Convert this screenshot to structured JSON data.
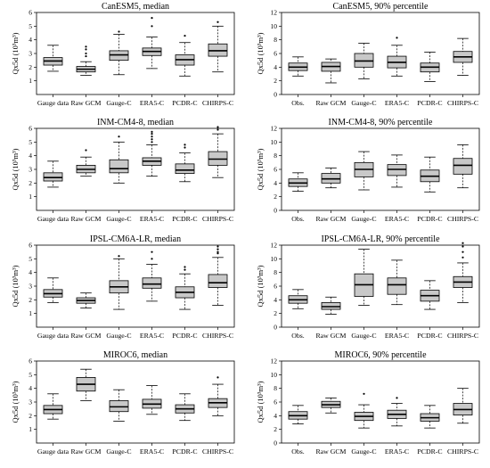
{
  "chart_data": [
    {
      "type": "box",
      "title": "CanESM5, median",
      "ylabel": "Qx5d (10³m³)",
      "ylim": [
        0,
        6
      ],
      "yticks": [
        1,
        2,
        3,
        4,
        5,
        6
      ],
      "categories": [
        "Gauge data",
        "Raw GCM",
        "Gauge-C",
        "ERA5-C",
        "PCDR-C",
        "CHIRPS-C"
      ],
      "boxes": [
        {
          "min": 1.7,
          "q1": 2.15,
          "median": 2.45,
          "q3": 2.7,
          "max": 3.6,
          "outliers": []
        },
        {
          "min": 1.4,
          "q1": 1.65,
          "median": 1.85,
          "q3": 2.05,
          "max": 2.4,
          "outliers": [
            2.8,
            3.0,
            3.3,
            3.5
          ]
        },
        {
          "min": 1.45,
          "q1": 2.5,
          "median": 2.9,
          "q3": 3.2,
          "max": 4.4,
          "outliers": [
            4.6
          ]
        },
        {
          "min": 1.9,
          "q1": 2.85,
          "median": 3.15,
          "q3": 3.4,
          "max": 4.2,
          "outliers": [
            5.0,
            5.6
          ]
        },
        {
          "min": 1.35,
          "q1": 2.15,
          "median": 2.55,
          "q3": 2.9,
          "max": 3.8,
          "outliers": [
            4.3
          ]
        },
        {
          "min": 1.65,
          "q1": 2.8,
          "median": 3.2,
          "q3": 3.7,
          "max": 5.0,
          "outliers": [
            5.3
          ]
        }
      ]
    },
    {
      "type": "box",
      "title": "CanESM5, 90% percentile",
      "ylabel": "Qx5d (10³m³)",
      "ylim": [
        0,
        12
      ],
      "yticks": [
        0,
        2,
        4,
        6,
        8,
        10,
        12
      ],
      "categories": [
        "Obs.",
        "Raw GCM",
        "Gauge-C",
        "ERA5-C",
        "PCDR-C",
        "CHIRPS-C"
      ],
      "boxes": [
        {
          "min": 2.7,
          "q1": 3.5,
          "median": 4.0,
          "q3": 4.6,
          "max": 5.5,
          "outliers": []
        },
        {
          "min": 1.7,
          "q1": 3.4,
          "median": 4.1,
          "q3": 4.7,
          "max": 5.2,
          "outliers": []
        },
        {
          "min": 2.3,
          "q1": 4.0,
          "median": 4.9,
          "q3": 6.0,
          "max": 7.5,
          "outliers": []
        },
        {
          "min": 2.7,
          "q1": 3.9,
          "median": 4.7,
          "q3": 5.6,
          "max": 7.2,
          "outliers": [
            8.3
          ]
        },
        {
          "min": 1.9,
          "q1": 3.3,
          "median": 4.0,
          "q3": 4.6,
          "max": 6.2,
          "outliers": []
        },
        {
          "min": 2.8,
          "q1": 4.7,
          "median": 5.5,
          "q3": 6.3,
          "max": 8.2,
          "outliers": []
        }
      ]
    },
    {
      "type": "box",
      "title": "INM-CM4-8, median",
      "ylabel": "Qx5d (10³m³)",
      "ylim": [
        0,
        6
      ],
      "yticks": [
        1,
        2,
        3,
        4,
        5,
        6
      ],
      "categories": [
        "Gauge data",
        "Raw GCM",
        "Gauge-C",
        "ERA5-C",
        "PCDR-C",
        "CHIRPS-C"
      ],
      "boxes": [
        {
          "min": 1.7,
          "q1": 2.15,
          "median": 2.4,
          "q3": 2.75,
          "max": 3.6,
          "outliers": []
        },
        {
          "min": 2.5,
          "q1": 2.75,
          "median": 3.0,
          "q3": 3.3,
          "max": 3.9,
          "outliers": [
            4.4
          ]
        },
        {
          "min": 2.0,
          "q1": 2.75,
          "median": 3.05,
          "q3": 3.7,
          "max": 5.0,
          "outliers": [
            5.4
          ]
        },
        {
          "min": 2.5,
          "q1": 3.3,
          "median": 3.6,
          "q3": 3.85,
          "max": 4.8,
          "outliers": [
            5.0,
            5.2,
            5.4,
            5.6,
            5.75
          ]
        },
        {
          "min": 2.1,
          "q1": 2.7,
          "median": 2.95,
          "q3": 3.4,
          "max": 4.2,
          "outliers": [
            4.6,
            4.8
          ]
        },
        {
          "min": 2.4,
          "q1": 3.3,
          "median": 3.75,
          "q3": 4.3,
          "max": 5.6,
          "outliers": [
            5.9,
            6.1
          ]
        }
      ]
    },
    {
      "type": "box",
      "title": "INM-CM4-8, 90% percentile",
      "ylabel": "Qx5d (10³m³)",
      "ylim": [
        0,
        12
      ],
      "yticks": [
        0,
        2,
        4,
        6,
        8,
        10,
        12
      ],
      "categories": [
        "Obs.",
        "Raw GCM",
        "Gauge-C",
        "ERA5-C",
        "PCDR-C",
        "CHIRPS-C"
      ],
      "boxes": [
        {
          "min": 2.8,
          "q1": 3.5,
          "median": 4.0,
          "q3": 4.6,
          "max": 5.5,
          "outliers": []
        },
        {
          "min": 3.3,
          "q1": 4.0,
          "median": 4.6,
          "q3": 5.4,
          "max": 6.2,
          "outliers": []
        },
        {
          "min": 3.0,
          "q1": 4.9,
          "median": 6.0,
          "q3": 7.0,
          "max": 8.6,
          "outliers": []
        },
        {
          "min": 3.4,
          "q1": 5.1,
          "median": 6.0,
          "q3": 6.7,
          "max": 8.1,
          "outliers": []
        },
        {
          "min": 2.7,
          "q1": 4.2,
          "median": 5.0,
          "q3": 5.9,
          "max": 7.8,
          "outliers": []
        },
        {
          "min": 3.3,
          "q1": 5.3,
          "median": 6.6,
          "q3": 7.6,
          "max": 9.6,
          "outliers": []
        }
      ]
    },
    {
      "type": "box",
      "title": "IPSL-CM6A-LR, median",
      "ylabel": "Qx5d (10³m³)",
      "ylim": [
        0,
        6
      ],
      "yticks": [
        1,
        2,
        3,
        4,
        5,
        6
      ],
      "categories": [
        "Gauge data",
        "Raw GCM",
        "Gauge-C",
        "ERA5-C",
        "PCDR-C",
        "CHIRPS-C"
      ],
      "boxes": [
        {
          "min": 1.8,
          "q1": 2.2,
          "median": 2.45,
          "q3": 2.75,
          "max": 3.6,
          "outliers": []
        },
        {
          "min": 1.4,
          "q1": 1.75,
          "median": 1.95,
          "q3": 2.15,
          "max": 2.5,
          "outliers": []
        },
        {
          "min": 1.3,
          "q1": 2.5,
          "median": 2.95,
          "q3": 3.4,
          "max": 5.0,
          "outliers": [
            5.2
          ]
        },
        {
          "min": 1.9,
          "q1": 2.85,
          "median": 3.15,
          "q3": 3.6,
          "max": 4.6,
          "outliers": [
            5.0,
            5.5
          ]
        },
        {
          "min": 1.3,
          "q1": 2.15,
          "median": 2.55,
          "q3": 2.95,
          "max": 3.9,
          "outliers": [
            4.2,
            4.4
          ]
        },
        {
          "min": 1.6,
          "q1": 2.9,
          "median": 3.25,
          "q3": 3.85,
          "max": 5.1,
          "outliers": [
            5.4,
            5.5,
            5.7,
            5.9
          ]
        }
      ]
    },
    {
      "type": "box",
      "title": "IPSL-CM6A-LR, 90% percentile",
      "ylabel": "Qx5d (10³m³)",
      "ylim": [
        0,
        12
      ],
      "yticks": [
        0,
        2,
        4,
        6,
        8,
        10,
        12
      ],
      "categories": [
        "Obs.",
        "Raw GCM",
        "Gauge-C",
        "ERA5-C",
        "PCDR-C",
        "CHIRPS-C"
      ],
      "boxes": [
        {
          "min": 2.7,
          "q1": 3.5,
          "median": 4.0,
          "q3": 4.6,
          "max": 5.5,
          "outliers": []
        },
        {
          "min": 1.9,
          "q1": 2.6,
          "median": 3.0,
          "q3": 3.6,
          "max": 4.4,
          "outliers": []
        },
        {
          "min": 3.2,
          "q1": 4.5,
          "median": 6.2,
          "q3": 7.8,
          "max": 11.4,
          "outliers": []
        },
        {
          "min": 3.3,
          "q1": 4.8,
          "median": 6.2,
          "q3": 7.2,
          "max": 9.8,
          "outliers": []
        },
        {
          "min": 2.6,
          "q1": 3.8,
          "median": 4.6,
          "q3": 5.4,
          "max": 6.8,
          "outliers": []
        },
        {
          "min": 3.6,
          "q1": 5.8,
          "median": 6.6,
          "q3": 7.4,
          "max": 9.4,
          "outliers": [
            10.2,
            11.0,
            11.8,
            12.3
          ]
        }
      ]
    },
    {
      "type": "box",
      "title": "MIROC6, median",
      "ylabel": "Qx5d (10³m³)",
      "ylim": [
        0,
        6
      ],
      "yticks": [
        1,
        2,
        3,
        4,
        5,
        6
      ],
      "categories": [
        "Gauge data",
        "Raw GCM",
        "Gauge-C",
        "ERA5-C",
        "PCDR-C",
        "CHIRPS-C"
      ],
      "boxes": [
        {
          "min": 1.75,
          "q1": 2.15,
          "median": 2.45,
          "q3": 2.75,
          "max": 3.6,
          "outliers": []
        },
        {
          "min": 3.1,
          "q1": 3.8,
          "median": 4.3,
          "q3": 4.8,
          "max": 5.4,
          "outliers": []
        },
        {
          "min": 1.6,
          "q1": 2.3,
          "median": 2.65,
          "q3": 3.1,
          "max": 3.9,
          "outliers": []
        },
        {
          "min": 2.1,
          "q1": 2.55,
          "median": 2.85,
          "q3": 3.2,
          "max": 4.2,
          "outliers": []
        },
        {
          "min": 1.65,
          "q1": 2.2,
          "median": 2.5,
          "q3": 2.8,
          "max": 3.6,
          "outliers": []
        },
        {
          "min": 2.0,
          "q1": 2.6,
          "median": 2.95,
          "q3": 3.25,
          "max": 4.3,
          "outliers": [
            4.8
          ]
        }
      ]
    },
    {
      "type": "box",
      "title": "MIROC6, 90% percentile",
      "ylabel": "Qx5d (10³m³)",
      "ylim": [
        0,
        12
      ],
      "yticks": [
        0,
        2,
        4,
        6,
        8,
        10,
        12
      ],
      "categories": [
        "Obs.",
        "Raw GCM",
        "Gauge-C",
        "ERA5-C",
        "PCDR-C",
        "CHIRPS-C"
      ],
      "boxes": [
        {
          "min": 2.8,
          "q1": 3.5,
          "median": 4.0,
          "q3": 4.6,
          "max": 5.5,
          "outliers": []
        },
        {
          "min": 4.4,
          "q1": 5.2,
          "median": 5.6,
          "q3": 6.1,
          "max": 6.6,
          "outliers": []
        },
        {
          "min": 2.2,
          "q1": 3.3,
          "median": 3.9,
          "q3": 4.5,
          "max": 5.6,
          "outliers": [
            7.2
          ]
        },
        {
          "min": 2.5,
          "q1": 3.6,
          "median": 4.2,
          "q3": 4.8,
          "max": 5.8,
          "outliers": [
            6.6
          ]
        },
        {
          "min": 2.2,
          "q1": 3.2,
          "median": 3.7,
          "q3": 4.3,
          "max": 5.5,
          "outliers": []
        },
        {
          "min": 2.9,
          "q1": 4.1,
          "median": 4.9,
          "q3": 5.8,
          "max": 8.0,
          "outliers": []
        }
      ]
    }
  ]
}
